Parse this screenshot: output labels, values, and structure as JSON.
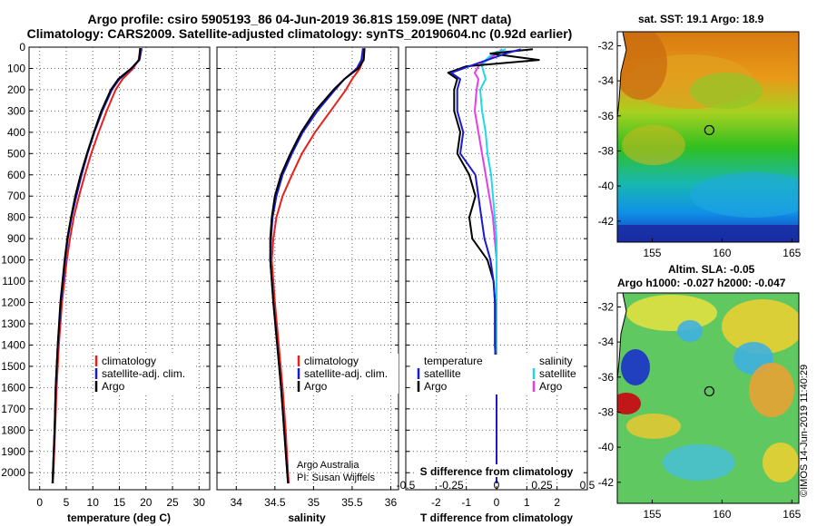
{
  "header": {
    "line1": "Argo profile: csiro 5905193_86 04-Jun-2019 36.81S 159.09E (NRT data)",
    "line2": "Climatology: CARS2009. Satellite-adjusted climatology: synTS_20190604.nc (0.92d earlier)"
  },
  "colors": {
    "climatology": "#e8201c",
    "satellite": "#1a1ad0",
    "argo": "#000000",
    "sat_salinity": "#22d8e8",
    "argo_salinity": "#e83ce8"
  },
  "chart_data": [
    {
      "type": "line",
      "name": "temperature-profile",
      "xlabel": "temperature (deg C)",
      "ylabel": "",
      "xlim": [
        -2,
        32
      ],
      "ylim": [
        2080,
        0
      ],
      "xticks": [
        "0",
        "5",
        "10",
        "15",
        "20",
        "25",
        "30"
      ],
      "yticks": [
        "0",
        "100",
        "200",
        "300",
        "400",
        "500",
        "600",
        "700",
        "800",
        "900",
        "1000",
        "1100",
        "1200",
        "1300",
        "1400",
        "1500",
        "1600",
        "1700",
        "1800",
        "1900",
        "2000"
      ],
      "depth": [
        5,
        60,
        100,
        150,
        200,
        300,
        400,
        500,
        600,
        700,
        800,
        900,
        1000,
        1200,
        1400,
        1600,
        1800,
        2000,
        2050
      ],
      "series": [
        {
          "name": "climatology",
          "values": [
            19.0,
            18.6,
            17.6,
            15.6,
            14.3,
            12.6,
            11.1,
            9.7,
            8.5,
            7.4,
            6.4,
            5.7,
            5.1,
            4.2,
            3.6,
            3.2,
            2.9,
            2.6,
            2.5
          ]
        },
        {
          "name": "satellite-adj. clim.",
          "values": [
            19.2,
            18.8,
            17.3,
            15.0,
            13.6,
            11.8,
            10.3,
            9.0,
            7.9,
            6.9,
            6.0,
            5.3,
            4.8,
            4.0,
            3.4,
            3.0,
            2.8,
            2.5,
            2.4
          ]
        },
        {
          "name": "Argo",
          "values": [
            18.9,
            18.7,
            17.2,
            14.8,
            13.4,
            11.6,
            10.2,
            8.9,
            7.7,
            6.7,
            5.9,
            5.2,
            4.7,
            3.9,
            3.4,
            3.0,
            2.8,
            2.5,
            2.4
          ]
        }
      ],
      "legend": [
        "climatology",
        "satellite-adj. clim.",
        "Argo"
      ]
    },
    {
      "type": "line",
      "name": "salinity-profile",
      "xlabel": "salinity",
      "xlim": [
        33.75,
        36.1
      ],
      "ylim": [
        2080,
        0
      ],
      "xticks": [
        "34",
        "34.5",
        "35",
        "35.5",
        "36"
      ],
      "depth": [
        5,
        60,
        100,
        150,
        200,
        300,
        400,
        500,
        600,
        700,
        800,
        900,
        1000,
        1200,
        1400,
        1600,
        1800,
        2000,
        2050
      ],
      "series": [
        {
          "name": "climatology",
          "values": [
            35.66,
            35.64,
            35.6,
            35.5,
            35.42,
            35.22,
            35.02,
            34.85,
            34.72,
            34.6,
            34.52,
            34.48,
            34.46,
            34.5,
            34.55,
            34.6,
            34.64,
            34.67,
            34.68
          ]
        },
        {
          "name": "satellite-adj. clim.",
          "values": [
            35.64,
            35.62,
            35.56,
            35.4,
            35.28,
            35.05,
            34.86,
            34.72,
            34.6,
            34.52,
            34.47,
            34.45,
            34.44,
            34.48,
            34.53,
            34.58,
            34.62,
            34.66,
            34.67
          ]
        },
        {
          "name": "Argo",
          "values": [
            35.66,
            35.65,
            35.58,
            35.4,
            35.26,
            35.02,
            34.84,
            34.7,
            34.58,
            34.5,
            34.46,
            34.44,
            34.44,
            34.48,
            34.53,
            34.58,
            34.62,
            34.66,
            34.67
          ]
        }
      ],
      "legend": [
        "climatology",
        "satellite-adj. clim.",
        "Argo"
      ],
      "annotations": [
        "Argo Australia",
        "PI: Susan Wijffels"
      ]
    },
    {
      "type": "line",
      "name": "difference-profile",
      "xlabel": "T difference from climatology",
      "secondary_xlabel": "S difference from climatology",
      "xlim": [
        -3,
        3
      ],
      "ylim": [
        2080,
        0
      ],
      "xticks": [
        "-2",
        "-1",
        "0",
        "1",
        "2"
      ],
      "secondary_xticks": [
        "-0.5",
        "-0.25",
        "0",
        "0.25",
        "0.5"
      ],
      "depth": [
        10,
        30,
        60,
        90,
        120,
        150,
        200,
        300,
        400,
        500,
        600,
        700,
        800,
        900,
        1000,
        1100,
        1200,
        1400,
        1600,
        1800,
        2000,
        2050
      ],
      "series": [
        {
          "name": "T satellite",
          "values": [
            0.8,
            0.3,
            -0.3,
            -0.9,
            -1.5,
            -1.2,
            -1.3,
            -1.3,
            -1.1,
            -1.2,
            -0.7,
            -0.6,
            -0.5,
            -0.4,
            -0.2,
            -0.1,
            -0.05,
            -0.05,
            0.0,
            0.0,
            0.0,
            0.0
          ]
        },
        {
          "name": "T Argo",
          "values": [
            1.2,
            -0.2,
            1.4,
            -1.0,
            -1.6,
            -1.3,
            -1.4,
            -1.4,
            -1.2,
            -1.3,
            -0.9,
            -0.7,
            -0.9,
            -0.8,
            -0.3,
            -0.1,
            -0.05,
            -0.05,
            0.0,
            0.0,
            0.0,
            0.0
          ]
        },
        {
          "name": "S satellite",
          "values": [
            0.05,
            -0.02,
            -0.06,
            -0.08,
            -0.07,
            -0.06,
            -0.09,
            -0.08,
            -0.06,
            -0.05,
            -0.03,
            -0.02,
            -0.01,
            0.0,
            0.0,
            0.0,
            0.0,
            0.0,
            0.0,
            0.0,
            0.0,
            0.0
          ]
        },
        {
          "name": "S Argo",
          "values": [
            0.03,
            0.0,
            -0.05,
            -0.1,
            -0.12,
            -0.1,
            -0.11,
            -0.12,
            -0.1,
            -0.08,
            -0.06,
            -0.04,
            -0.02,
            -0.01,
            0.0,
            0.0,
            0.0,
            0.0,
            0.0,
            0.0,
            0.0,
            0.0
          ]
        }
      ],
      "legend_temperature_title": "temperature",
      "legend_salinity_title": "salinity",
      "legend_entries": [
        "satellite",
        "Argo"
      ]
    },
    {
      "type": "heatmap",
      "name": "sst-map",
      "title": "sat. SST: 19.1  Argo: 18.9",
      "xticks": [
        "155",
        "160",
        "165"
      ],
      "yticks": [
        "-32",
        "-34",
        "-36",
        "-38",
        "-40",
        "-42"
      ],
      "xlim": [
        152.5,
        165.5
      ],
      "ylim": [
        -43.2,
        -31.2
      ],
      "float_position": [
        159.09,
        -36.81
      ]
    },
    {
      "type": "heatmap",
      "name": "sla-map",
      "title_line1": "Altim. SLA: -0.05",
      "title_line2": "Argo h1000: -0.027  h2000: -0.047",
      "xticks": [
        "155",
        "160",
        "165"
      ],
      "yticks": [
        "-32",
        "-34",
        "-36",
        "-38",
        "-40",
        "-42"
      ],
      "xlim": [
        152.5,
        165.5
      ],
      "ylim": [
        -43.2,
        -31.2
      ],
      "float_position": [
        159.09,
        -36.81
      ]
    }
  ],
  "footer": {
    "stamp": "©IMOS 14-Jun-2019 11:40:29"
  }
}
